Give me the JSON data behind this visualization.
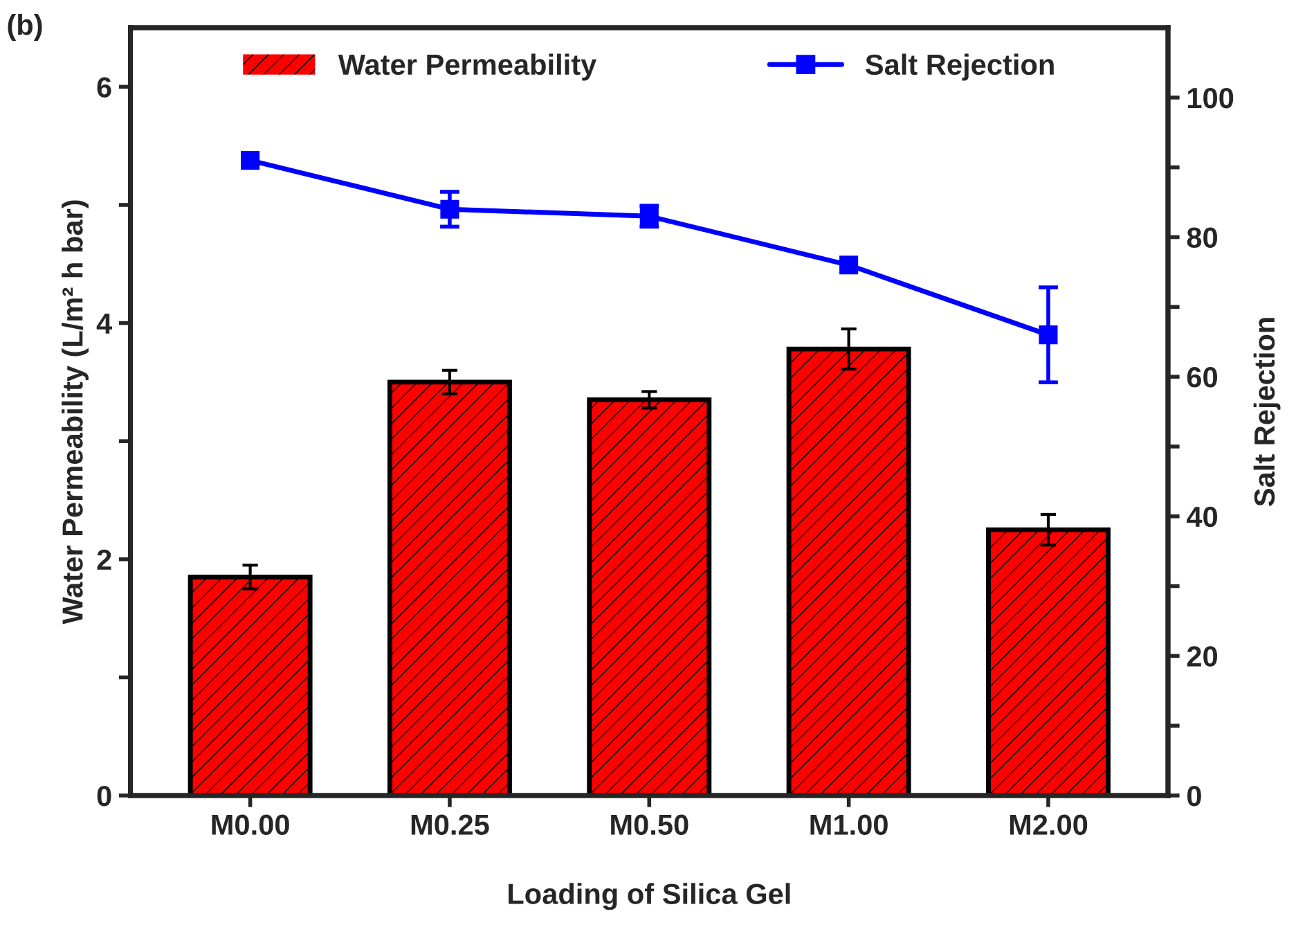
{
  "chart_data": {
    "type": "bar",
    "title": "(b)",
    "xlabel": "Loading of Silica Gel",
    "ylabel": "Water Permeability (L/m² h bar)",
    "y2label": "Salt Rejection",
    "categories": [
      "M0.00",
      "M0.25",
      "M0.50",
      "M1.00",
      "M2.00"
    ],
    "series": [
      {
        "name": "Water Permeability",
        "color": "#ff0000",
        "values": [
          1.85,
          3.5,
          3.35,
          3.78,
          2.25
        ],
        "errors": [
          0.1,
          0.1,
          0.07,
          0.17,
          0.13
        ]
      },
      {
        "name": "Salt Rejection",
        "type": "line",
        "axis": "y2",
        "color": "#0000ff",
        "marker": "square",
        "values": [
          91,
          84,
          83,
          76,
          66
        ],
        "errors": [
          null,
          2.5,
          1.5,
          null,
          6.8
        ]
      }
    ],
    "ylim": [
      0,
      6.5
    ],
    "yticks": [
      0,
      {
        "value": 1,
        "label": null
      },
      2,
      {
        "value": 3,
        "label": null
      },
      4,
      {
        "value": 5,
        "label": null
      },
      6
    ],
    "y2lim": [
      0,
      110
    ],
    "y2ticks": [
      0,
      {
        "value": 10,
        "label": null
      },
      20,
      {
        "value": 30,
        "label": null
      },
      40,
      {
        "value": 50,
        "label": null
      },
      60,
      {
        "value": 70,
        "label": null
      },
      80,
      {
        "value": 90,
        "label": null
      },
      100
    ],
    "legend": "top",
    "grid": false
  }
}
